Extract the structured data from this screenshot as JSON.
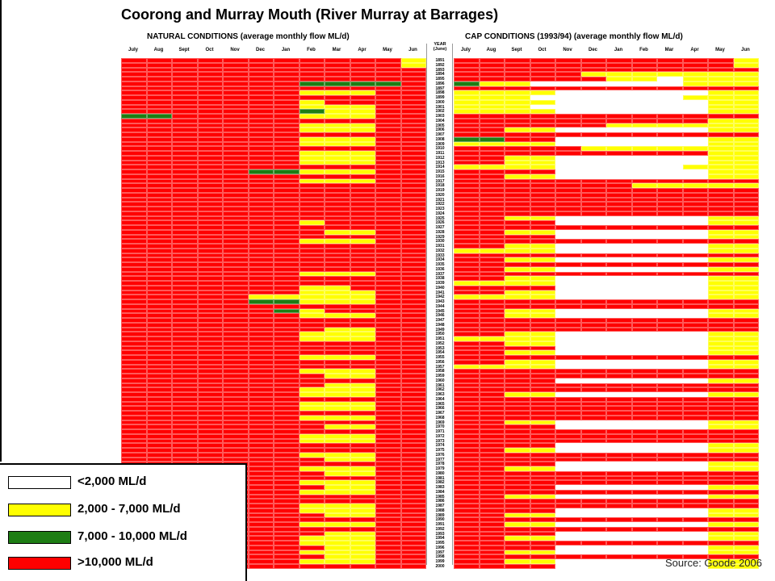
{
  "title": "Coorong and Murray Mouth (River Murray at Barrages)",
  "panels": {
    "natural": "NATURAL CONDITIONS (average monthly flow ML/d)",
    "cap": "CAP CONDITIONS (1993/94) (average monthly flow ML/d)"
  },
  "year_header": [
    "YEAR",
    "(June)"
  ],
  "months": [
    "July",
    "Aug",
    "Sept",
    "Oct",
    "Nov",
    "Dec",
    "Jan",
    "Feb",
    "Mar",
    "Apr",
    "May",
    "Jun"
  ],
  "legend": [
    {
      "label": "<2,000 ML/d",
      "color": "#ffffff"
    },
    {
      "label": "2,000 - 7,000 ML/d",
      "color": "#ffff00"
    },
    {
      "label": "7,000 - 10,000 ML/d",
      "color": "#1e7d14"
    },
    {
      "label": ">10,000 ML/d",
      "color": "#ff0000"
    }
  ],
  "source": "Source: Goode 2006",
  "chart_data": {
    "type": "heatmap",
    "title": "Coorong and Murray Mouth (River Murray at Barrages)",
    "x_categories": [
      "July",
      "Aug",
      "Sept",
      "Oct",
      "Nov",
      "Dec",
      "Jan",
      "Feb",
      "Mar",
      "Apr",
      "May",
      "Jun"
    ],
    "year_range": [
      1891,
      2000
    ],
    "class_scale": [
      "<2,000 ML/d",
      "2,000 - 7,000 ML/d",
      "7,000 - 10,000 ML/d",
      ">10,000 ML/d"
    ],
    "class_key": "0 = <2,000, 1 = 2,000-7,000, 2 = 7,000-10,000, 3 = >10,000; one string of 12 digits per year (July..June)",
    "natural": [
      "333333333331",
      "333333333331",
      "333333333333",
      "333333333333",
      "333333333333",
      "333333322223",
      "333333333333",
      "333333311133",
      "333333333333",
      "333333313333",
      "333333311133",
      "333333321133",
      "223333311133",
      "333333333333",
      "333333311133",
      "333333311133",
      "333333333333",
      "333333311133",
      "333333311133",
      "333333333333",
      "333333311133",
      "333333311133",
      "333333311133",
      "333333333333",
      "333332211133",
      "333333333333",
      "333333311133",
      "333333333333",
      "333333333333",
      "333333333333",
      "333333333333",
      "333333333333",
      "333333333333",
      "333333333333",
      "333333333333",
      "333333313333",
      "333333333333",
      "333333331133",
      "333333333333",
      "333333311133",
      "333333333333",
      "333333333333",
      "333333333333",
      "333333333333",
      "333333333333",
      "333333333333",
      "333333311133",
      "333333333333",
      "333333333333",
      "333333311333",
      "333333311133",
      "333331111133",
      "333332211133",
      "333333333333",
      "333333213333",
      "333333311133",
      "333333333333",
      "333333333333",
      "333333331133",
      "333333311133",
      "333333311133",
      "333333333333",
      "333333333333",
      "333333333333",
      "333333311133",
      "333333333333",
      "333333333333",
      "333333311133",
      "333333331133",
      "333333333333",
      "333333331133",
      "333333311133",
      "333333311133",
      "333333333333",
      "333333311133",
      "333333311133",
      "333333333333",
      "333333311133",
      "333333333333",
      "333333331133",
      "333333333333",
      "333333311133",
      "333333311133",
      "333333333333",
      "333333333333",
      "333333311133",
      "333333331133",
      "333333333333",
      "333333311133",
      "333333331133",
      "333333333333",
      "333333311133",
      "333333331133",
      "333333311133",
      "333333333333",
      "333333333333",
      "333333311133",
      "333333311133",
      "333333331133",
      "333333333333",
      "333333311133",
      "333333333333",
      "333333331133",
      "333333311133",
      "333333311133",
      "333333331133",
      "333333311133",
      "333333331133",
      "333333311133",
      "333333333333"
    ],
    "cap": [
      "333333333331",
      "333333333331",
      "333333333333",
      "333331111111",
      "333333110111",
      "211000000111",
      "333333333333",
      "111100000011",
      "111000000111",
      "111100000011",
      "111000000011",
      "111100000011",
      "333333333333",
      "333333333311",
      "333333111111",
      "331100000011",
      "333333333333",
      "223300000011",
      "111100000011",
      "333331111111",
      "333333333311",
      "331100000011",
      "331100000011",
      "111100000111",
      "333300000011",
      "331100000011",
      "333333333333",
      "333333311111",
      "333333333333",
      "333333333333",
      "333333333333",
      "333333333333",
      "333333333333",
      "333333333333",
      "331100000011",
      "333300000011",
      "333333333333",
      "331100000011",
      "333300000011",
      "333333333333",
      "331100000011",
      "111100000011",
      "333333333333",
      "331100000011",
      "333333333333",
      "331100000011",
      "333333333333",
      "331100000011",
      "111100000011",
      "333300000011",
      "331100000011",
      "111100000011",
      "333333333333",
      "333333333333",
      "331100000011",
      "331100000011",
      "333333333333",
      "333333333333",
      "333333333333",
      "331100000011",
      "111100000011",
      "331100000011",
      "333300000011",
      "331100000011",
      "333333333333",
      "331100000011",
      "111100000011",
      "333333333333",
      "333333333333",
      "333300000011",
      "333333333333",
      "333333333333",
      "331100000011",
      "333333333333",
      "333333333333",
      "333333333333",
      "333333333333",
      "333333333333",
      "331100000011",
      "333300000011",
      "333333333333",
      "333333333333",
      "333333333333",
      "333300000011",
      "331100000011",
      "333333333333",
      "333333333333",
      "333300000011",
      "331100000011",
      "333333333333",
      "333333333333",
      "333333333333",
      "333300000011",
      "333333333333",
      "331100000011",
      "333333333333",
      "333333333333",
      "333300000011",
      "331100000011",
      "333333333333",
      "331100000011",
      "333333333333",
      "333300000011",
      "331100000011",
      "333333333333",
      "333300000011",
      "331100000011",
      "333333333333",
      "331100000011",
      "333300000011"
    ]
  }
}
